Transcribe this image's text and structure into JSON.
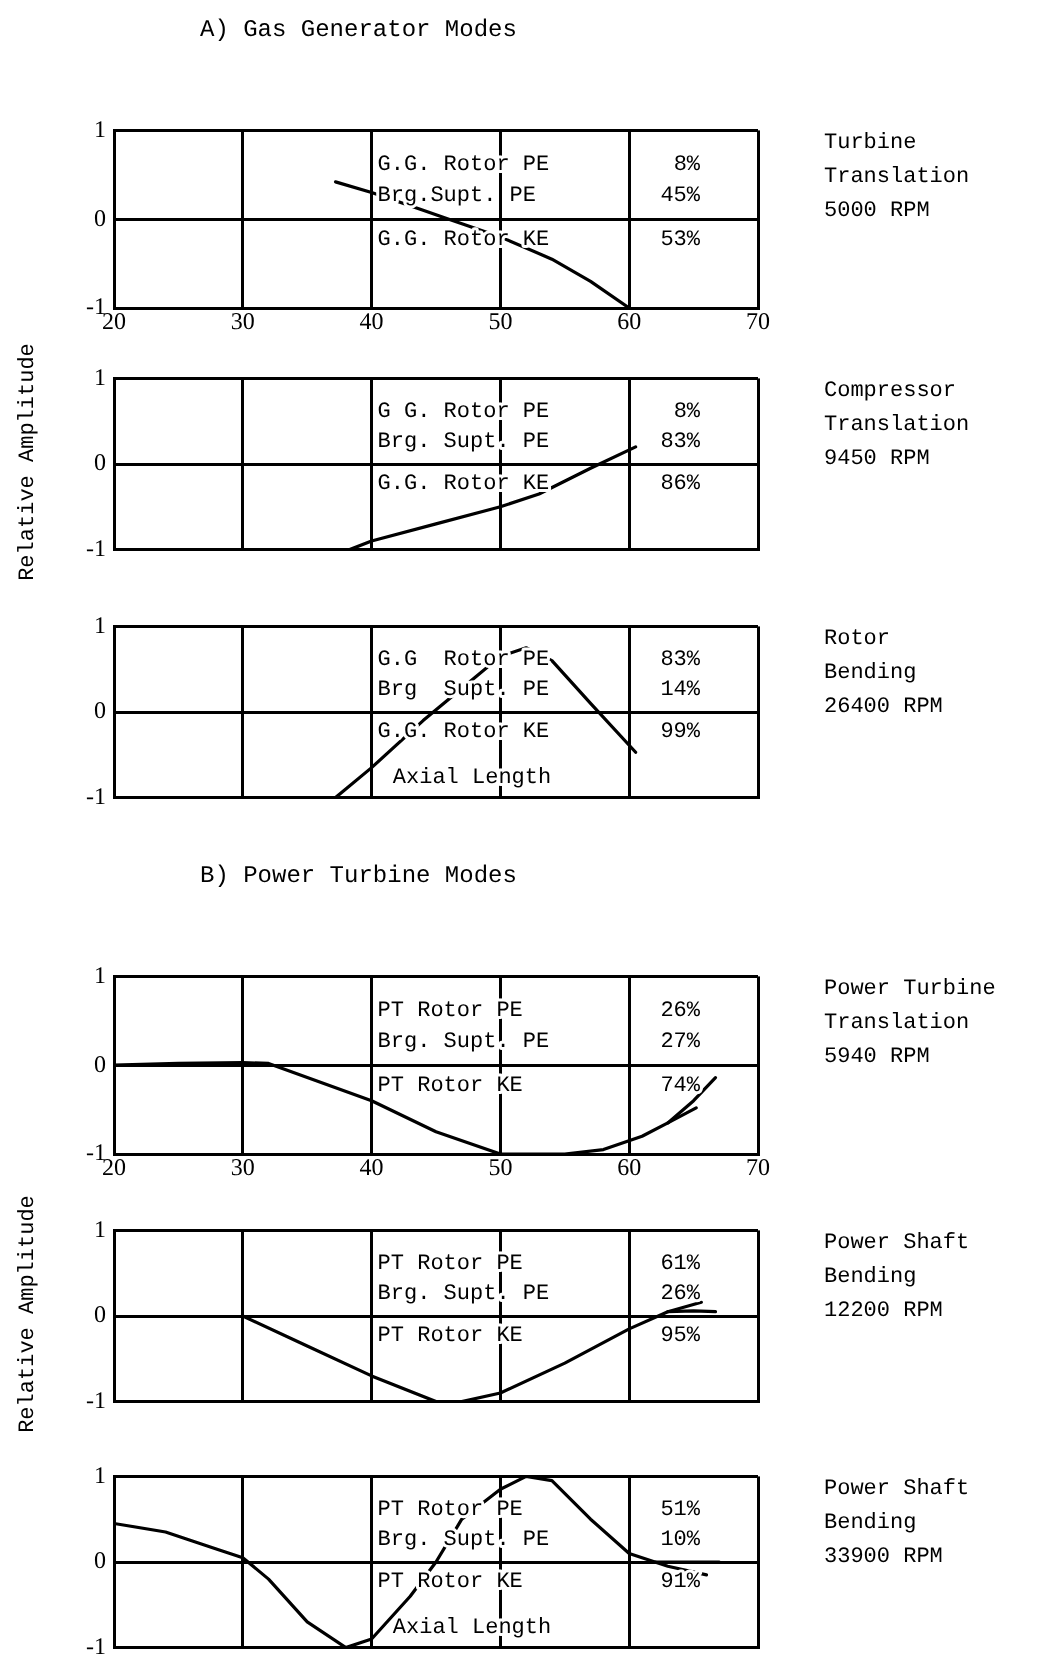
{
  "chart_data": [
    {
      "type": "line",
      "title": "A)  Gas Generator Modes",
      "xlim": [
        20,
        70
      ],
      "ylim": [
        -1,
        1
      ],
      "xticks": [
        20,
        30,
        40,
        50,
        60,
        70
      ],
      "yticks": [
        -1,
        0,
        1
      ],
      "grid": true,
      "annotations": [
        "G.G. Rotor PE",
        "8%",
        "Brg.Supt. PE",
        "45%",
        "G.G. Rotor KE",
        "53%",
        "Turbine",
        "Translation",
        "5000 RPM"
      ],
      "series": [
        {
          "color": "#000000",
          "x": [
            37.2,
            40,
            44,
            46,
            50,
            54,
            57,
            60
          ],
          "values": [
            0.42,
            0.3,
            0.1,
            0,
            -0.2,
            -0.45,
            -0.7,
            -1
          ]
        }
      ]
    },
    {
      "type": "line",
      "ylabel": "Relative Amplitude",
      "xlim": [
        20,
        70
      ],
      "ylim": [
        -1,
        1
      ],
      "xticks": [
        20,
        30,
        40,
        50,
        60,
        70
      ],
      "yticks": [
        -1,
        0,
        1
      ],
      "grid": true,
      "tick_labels": "y",
      "annotations": [
        "G G. Rotor PE",
        "8%",
        "Brg. Supt. PE",
        "83%",
        "G.G. Rotor KE",
        "86%",
        "Compressor",
        "Translation",
        "9450 RPM"
      ],
      "series": [
        {
          "color": "#000000",
          "x": [
            38.3,
            40,
            45,
            50,
            53,
            57,
            60.5
          ],
          "values": [
            -1,
            -0.9,
            -0.7,
            -0.5,
            -0.35,
            -0.05,
            0.2
          ]
        }
      ]
    },
    {
      "type": "line",
      "xlabel": "Axial Length",
      "xlim": [
        20,
        70
      ],
      "ylim": [
        -1,
        1
      ],
      "xticks": [
        20,
        30,
        40,
        50,
        60,
        70
      ],
      "yticks": [
        -1,
        0,
        1
      ],
      "grid": true,
      "tick_labels": "y",
      "annotations": [
        "G.G  Rotor PE",
        "83%",
        "Brg  Supt. PE",
        "14%",
        "G.G. Rotor KE",
        "99%",
        "Rotor",
        "Bending",
        "26400 RPM"
      ],
      "series": [
        {
          "color": "#000000",
          "x": [
            37.2,
            40,
            44,
            48,
            50,
            52,
            54,
            57,
            60.5
          ],
          "values": [
            -1,
            -0.65,
            -0.1,
            0.4,
            0.65,
            0.75,
            0.6,
            0.1,
            -0.47
          ]
        }
      ]
    },
    {
      "type": "line",
      "title": "B)   Power Turbine Modes",
      "xlim": [
        20,
        70
      ],
      "ylim": [
        -1,
        1
      ],
      "xticks": [
        20,
        30,
        40,
        50,
        60,
        70
      ],
      "yticks": [
        -1,
        0,
        1
      ],
      "grid": true,
      "annotations": [
        "PT Rotor PE",
        "26%",
        "Brg. Supt. PE",
        "27%",
        "PT Rotor KE",
        "74%",
        "Power Turbine",
        "Translation",
        "5940 RPM"
      ],
      "series": [
        {
          "color": "#000000",
          "x": [
            20,
            25,
            30,
            32,
            40,
            45,
            50,
            55,
            58,
            61,
            63,
            65.2
          ],
          "values": [
            0,
            0.02,
            0.03,
            0.02,
            -0.4,
            -0.75,
            -1,
            -1,
            -0.95,
            -0.8,
            -0.65,
            -0.48
          ]
        },
        {
          "color": "#000000",
          "x": [
            63,
            65,
            66.7
          ],
          "values": [
            -0.65,
            -0.4,
            -0.14
          ]
        }
      ]
    },
    {
      "type": "line",
      "ylabel": "Relative Amplitude",
      "xlim": [
        20,
        70
      ],
      "ylim": [
        -1,
        1
      ],
      "xticks": [
        20,
        30,
        40,
        50,
        60,
        70
      ],
      "yticks": [
        -1,
        0,
        1
      ],
      "grid": true,
      "tick_labels": "y",
      "annotations": [
        "PT Rotor PE",
        "61%",
        "Brg. Supt. PE",
        "26%",
        "PT Rotor KE",
        "95%",
        "Power Shaft",
        "Bending",
        "12200 RPM"
      ],
      "series": [
        {
          "color": "#000000",
          "x": [
            30,
            35,
            40,
            45,
            47,
            50,
            55,
            60,
            63,
            65.6
          ],
          "values": [
            0,
            -0.35,
            -0.7,
            -1,
            -1,
            -0.9,
            -0.55,
            -0.15,
            0.05,
            0.16
          ]
        },
        {
          "color": "#000000",
          "x": [
            63,
            65,
            66.7
          ],
          "values": [
            0.05,
            0.06,
            0.05
          ]
        }
      ]
    },
    {
      "type": "line",
      "xlabel": "Axial Length",
      "xlim": [
        20,
        70
      ],
      "ylim": [
        -1,
        1
      ],
      "xticks": [
        20,
        30,
        40,
        50,
        60,
        70
      ],
      "yticks": [
        -1,
        0,
        1
      ],
      "grid": true,
      "tick_labels": "y",
      "annotations": [
        "PT Rotor PE",
        "51%",
        "Brg. Supt. PE",
        "10%",
        "PT Rotor KE",
        "91%",
        "Power Shaft",
        "Bending",
        "33900 RPM"
      ],
      "series": [
        {
          "color": "#000000",
          "x": [
            20,
            24,
            28,
            30,
            32,
            35,
            38,
            40,
            43,
            45,
            47,
            50,
            52,
            54,
            57,
            60,
            63,
            66
          ],
          "values": [
            0.45,
            0.35,
            0.15,
            0.05,
            -0.2,
            -0.7,
            -1,
            -0.9,
            -0.4,
            0,
            0.5,
            0.85,
            1,
            0.95,
            0.5,
            0.1,
            -0.05,
            -0.15
          ]
        },
        {
          "color": "#000000",
          "x": [
            62,
            64,
            67
          ],
          "values": [
            0,
            0,
            0
          ]
        }
      ]
    }
  ]
}
